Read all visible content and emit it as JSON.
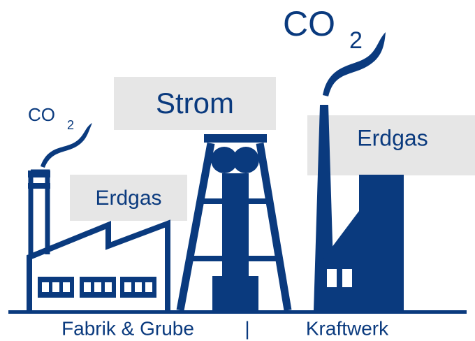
{
  "emissions": [
    {
      "text": "CO",
      "subscript": "2"
    },
    {
      "text": "CO",
      "subscript": "2"
    }
  ],
  "boxes": {
    "strom": "Strom",
    "erdgas_factory": "Erdgas",
    "erdgas_plant": "Erdgas"
  },
  "footer": {
    "left": "Fabrik & Grube",
    "separator": "|",
    "right": "Kraftwerk"
  }
}
